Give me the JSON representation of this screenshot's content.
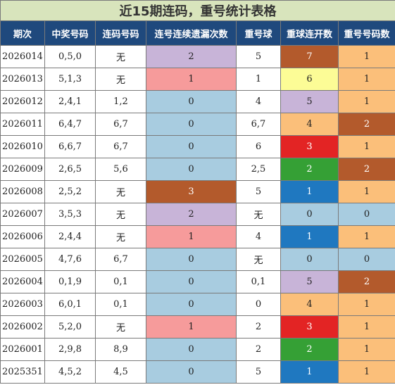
{
  "title": "近15期连码，重号统计表格",
  "headers": [
    "期次",
    "中奖号码",
    "连码号码",
    "连号连续遗漏次数",
    "重号球",
    "重球连开数",
    "重号号码数"
  ],
  "rows": [
    {
      "period": "2026014",
      "numbers": "0,5,0",
      "consec": "无",
      "miss": "2",
      "miss_color": "#c8b4d8",
      "repeat": "5",
      "repeat_run": "7",
      "run_color": "#b35a2c",
      "repeat_count": "1",
      "count_color": "#fbbf7a"
    },
    {
      "period": "2026013",
      "numbers": "5,1,3",
      "consec": "无",
      "miss": "1",
      "miss_color": "#f69b9b",
      "repeat": "1",
      "repeat_run": "6",
      "run_color": "#fcfc96",
      "repeat_count": "1",
      "count_color": "#fbbf7a"
    },
    {
      "period": "2026012",
      "numbers": "2,4,1",
      "consec": "1,2",
      "miss": "0",
      "miss_color": "#a8cce0",
      "repeat": "4",
      "repeat_run": "5",
      "run_color": "#c8b4d8",
      "repeat_count": "1",
      "count_color": "#fbbf7a"
    },
    {
      "period": "2026011",
      "numbers": "6,4,7",
      "consec": "6,7",
      "miss": "0",
      "miss_color": "#a8cce0",
      "repeat": "6,7",
      "repeat_run": "4",
      "run_color": "#fbbf7a",
      "repeat_count": "2",
      "count_color": "#b35a2c"
    },
    {
      "period": "2026010",
      "numbers": "6,6,7",
      "consec": "6,7",
      "miss": "0",
      "miss_color": "#a8cce0",
      "repeat": "6",
      "repeat_run": "3",
      "run_color": "#e32424",
      "repeat_count": "1",
      "count_color": "#fbbf7a"
    },
    {
      "period": "2026009",
      "numbers": "2,6,5",
      "consec": "5,6",
      "miss": "0",
      "miss_color": "#a8cce0",
      "repeat": "2,5",
      "repeat_run": "2",
      "run_color": "#35a035",
      "repeat_count": "2",
      "count_color": "#b35a2c"
    },
    {
      "period": "2026008",
      "numbers": "2,5,2",
      "consec": "无",
      "miss": "3",
      "miss_color": "#b35a2c",
      "repeat": "5",
      "repeat_run": "1",
      "run_color": "#1f78c0",
      "repeat_count": "1",
      "count_color": "#fbbf7a"
    },
    {
      "period": "2026007",
      "numbers": "3,5,3",
      "consec": "无",
      "miss": "2",
      "miss_color": "#c8b4d8",
      "repeat": "无",
      "repeat_run": "0",
      "run_color": "#a8cce0",
      "repeat_count": "0",
      "count_color": "#a8cce0"
    },
    {
      "period": "2026006",
      "numbers": "2,4,4",
      "consec": "无",
      "miss": "1",
      "miss_color": "#f69b9b",
      "repeat": "4",
      "repeat_run": "1",
      "run_color": "#1f78c0",
      "repeat_count": "1",
      "count_color": "#fbbf7a"
    },
    {
      "period": "2026005",
      "numbers": "4,7,6",
      "consec": "6,7",
      "miss": "0",
      "miss_color": "#a8cce0",
      "repeat": "无",
      "repeat_run": "0",
      "run_color": "#a8cce0",
      "repeat_count": "0",
      "count_color": "#a8cce0"
    },
    {
      "period": "2026004",
      "numbers": "0,1,9",
      "consec": "0,1",
      "miss": "0",
      "miss_color": "#a8cce0",
      "repeat": "0,1",
      "repeat_run": "5",
      "run_color": "#c8b4d8",
      "repeat_count": "2",
      "count_color": "#b35a2c"
    },
    {
      "period": "2026003",
      "numbers": "6,0,1",
      "consec": "0,1",
      "miss": "0",
      "miss_color": "#a8cce0",
      "repeat": "0",
      "repeat_run": "4",
      "run_color": "#fbbf7a",
      "repeat_count": "1",
      "count_color": "#fbbf7a"
    },
    {
      "period": "2026002",
      "numbers": "5,2,0",
      "consec": "无",
      "miss": "1",
      "miss_color": "#f69b9b",
      "repeat": "2",
      "repeat_run": "3",
      "run_color": "#e32424",
      "repeat_count": "1",
      "count_color": "#fbbf7a"
    },
    {
      "period": "2026001",
      "numbers": "2,9,8",
      "consec": "8,9",
      "miss": "0",
      "miss_color": "#a8cce0",
      "repeat": "2",
      "repeat_run": "2",
      "run_color": "#35a035",
      "repeat_count": "1",
      "count_color": "#fbbf7a"
    },
    {
      "period": "2025351",
      "numbers": "4,5,2",
      "consec": "4,5",
      "miss": "0",
      "miss_color": "#a8cce0",
      "repeat": "5",
      "repeat_run": "1",
      "run_color": "#1f78c0",
      "repeat_count": "1",
      "count_color": "#fbbf7a"
    }
  ]
}
